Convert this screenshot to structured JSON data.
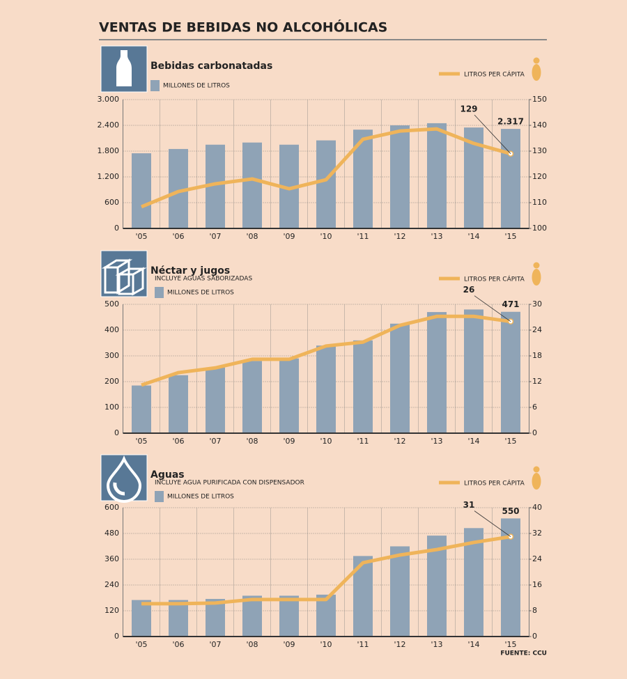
{
  "title": "VENTAS DE BEBIDAS NO ALCOHÓLICAS",
  "source": "FUENTE: CCU",
  "chart_data": [
    {
      "type": "bar_line",
      "title": "Bebidas carbonatadas",
      "categories": [
        "'05",
        "'06",
        "'07",
        "'08",
        "'09",
        "'10",
        "'11",
        "'12",
        "'13",
        "'14",
        "'15"
      ],
      "series": [
        {
          "name": "MILLONES DE LITROS",
          "type": "bar",
          "color": "#8fa3b6",
          "values": [
            1750,
            1850,
            1950,
            2000,
            1950,
            2050,
            2300,
            2400,
            2450,
            2350,
            2317
          ],
          "value_labels": [
            null,
            null,
            null,
            null,
            null,
            null,
            null,
            null,
            null,
            null,
            "2.317"
          ]
        },
        {
          "name": "LITROS PER CÁPITA",
          "type": "line",
          "axis": "y2",
          "color": "#efb45a",
          "values": [
            108.4,
            114.3,
            117.3,
            119.2,
            115.4,
            118.9,
            134.6,
            137.8,
            138.6,
            133,
            129
          ],
          "value_labels": [
            null,
            null,
            null,
            null,
            null,
            null,
            null,
            null,
            null,
            null,
            "129"
          ]
        }
      ],
      "ylim": [
        0,
        3000
      ],
      "yticks": [
        0,
        600,
        {
          "value": 1200,
          "label": "1.200"
        },
        {
          "value": 1800,
          "label": "1.800"
        },
        {
          "value": 2400,
          "label": "2.400"
        },
        {
          "value": 3000,
          "label": "3.000"
        }
      ],
      "y2lim": [
        100,
        150
      ],
      "y2ticks": [
        100,
        110,
        120,
        130,
        140,
        150
      ],
      "grid": true
    },
    {
      "type": "bar_line",
      "title": "Néctar y jugos",
      "subtitle": "INCLUYE AGUAS SABORIZADAS",
      "categories": [
        "'05",
        "'06",
        "'07",
        "'08",
        "'09",
        "'10",
        "'11",
        "'12",
        "'13",
        "'14",
        "'15"
      ],
      "series": [
        {
          "name": "MILLONES DE LITROS",
          "type": "bar",
          "color": "#8fa3b6",
          "values": [
            185,
            225,
            255,
            280,
            290,
            340,
            360,
            425,
            470,
            480,
            471
          ],
          "value_labels": [
            null,
            null,
            null,
            null,
            null,
            null,
            null,
            null,
            null,
            null,
            "471"
          ]
        },
        {
          "name": "LITROS PER CÁPITA",
          "type": "line",
          "axis": "y2",
          "color": "#efb45a",
          "values": [
            11.2,
            14.1,
            15.2,
            17.2,
            17.2,
            20.3,
            21.2,
            25.1,
            27.2,
            27.2,
            26
          ],
          "value_labels": [
            null,
            null,
            null,
            null,
            null,
            null,
            null,
            null,
            null,
            null,
            "26"
          ]
        }
      ],
      "ylim": [
        0,
        500
      ],
      "yticks": [
        0,
        100,
        200,
        300,
        400,
        500
      ],
      "y2lim": [
        0,
        30
      ],
      "y2ticks": [
        0,
        6,
        12,
        18,
        24,
        30
      ],
      "grid": true
    },
    {
      "type": "bar_line",
      "title": "Aguas",
      "subtitle": "INCLUYE AGUA PURIFICADA CON DISPENSADOR",
      "categories": [
        "'05",
        "'06",
        "'07",
        "'08",
        "'09",
        "'10",
        "'11",
        "'12",
        "'13",
        "'14",
        "'15"
      ],
      "series": [
        {
          "name": "MILLONES DE LITROS",
          "type": "bar",
          "color": "#8fa3b6",
          "values": [
            170,
            170,
            175,
            190,
            190,
            195,
            375,
            420,
            470,
            505,
            550
          ],
          "value_labels": [
            null,
            null,
            null,
            null,
            null,
            null,
            null,
            null,
            null,
            null,
            "550"
          ]
        },
        {
          "name": "LITROS PER CÁPITA",
          "type": "line",
          "axis": "y2",
          "color": "#efb45a",
          "values": [
            10.2,
            10.2,
            10.4,
            11.5,
            11.5,
            11.5,
            22.9,
            25.3,
            27,
            29.2,
            31
          ],
          "value_labels": [
            null,
            null,
            null,
            null,
            null,
            null,
            null,
            null,
            null,
            null,
            "31"
          ]
        }
      ],
      "ylim": [
        0,
        600
      ],
      "yticks": [
        0,
        120,
        240,
        360,
        480,
        600
      ],
      "y2lim": [
        0,
        40
      ],
      "y2ticks": [
        0,
        8,
        16,
        24,
        32,
        40
      ],
      "grid": true
    }
  ]
}
